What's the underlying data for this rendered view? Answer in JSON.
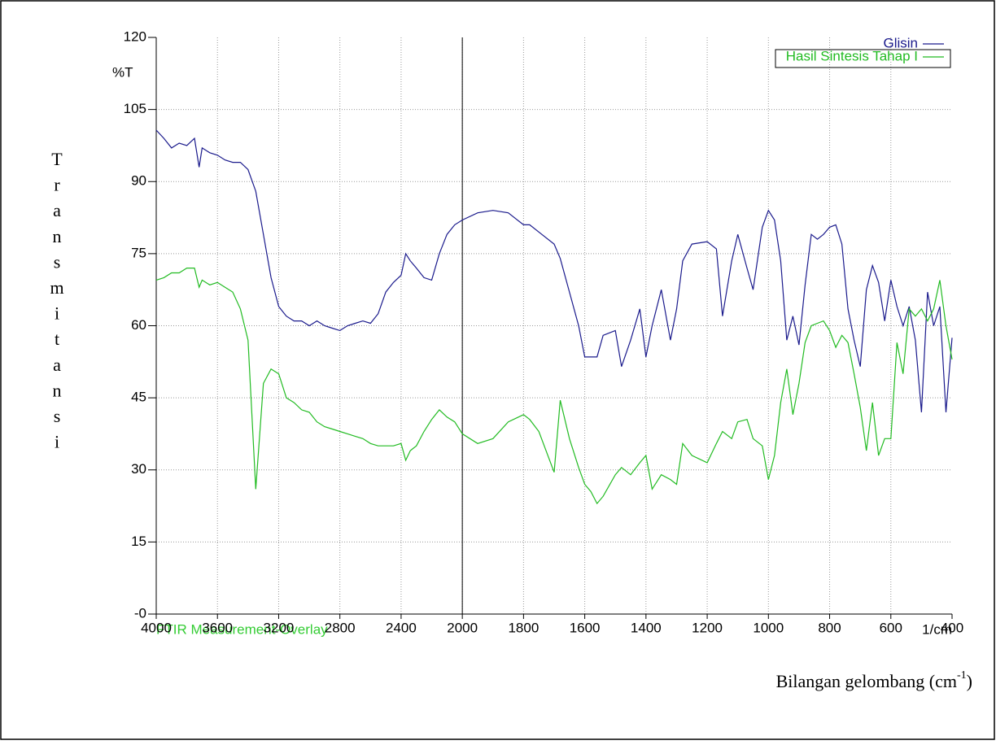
{
  "chart_data": {
    "type": "line",
    "y_title": "Transmitansi",
    "y_unit": "%T",
    "x_unit": "1/cm",
    "x_title": "Bilangan gelombang (cm",
    "x_title_sup": "-1",
    "x_title_end": ")",
    "caption": "FTIR Measurement-Overlay",
    "caption_color": "#33cc33",
    "xlim": [
      4000,
      400
    ],
    "xticks": [
      4000,
      3600,
      3200,
      2800,
      2400,
      2000,
      1800,
      1600,
      1400,
      1200,
      1000,
      800,
      600,
      400
    ],
    "xbreak": 2000,
    "ylim": [
      0,
      120
    ],
    "yticks": [
      {
        "value": 0,
        "label": "-0"
      },
      15,
      30,
      45,
      60,
      75,
      90,
      105,
      120
    ],
    "grid": true,
    "legend": "top-right",
    "x": [
      4000,
      3950,
      3900,
      3850,
      3800,
      3750,
      3720,
      3700,
      3650,
      3600,
      3550,
      3500,
      3450,
      3400,
      3350,
      3300,
      3250,
      3200,
      3150,
      3100,
      3050,
      3000,
      2950,
      2900,
      2850,
      2800,
      2750,
      2700,
      2650,
      2600,
      2550,
      2500,
      2450,
      2400,
      2370,
      2340,
      2300,
      2250,
      2200,
      2150,
      2100,
      2050,
      2000,
      1950,
      1900,
      1850,
      1800,
      1780,
      1750,
      1700,
      1680,
      1650,
      1620,
      1600,
      1580,
      1560,
      1540,
      1500,
      1480,
      1450,
      1420,
      1400,
      1380,
      1350,
      1320,
      1300,
      1280,
      1250,
      1200,
      1170,
      1150,
      1120,
      1100,
      1070,
      1050,
      1020,
      1000,
      980,
      960,
      940,
      920,
      900,
      880,
      860,
      840,
      820,
      800,
      780,
      760,
      740,
      720,
      700,
      680,
      660,
      640,
      620,
      600,
      580,
      560,
      540,
      520,
      500,
      480,
      460,
      440,
      420,
      400
    ],
    "series": [
      {
        "name": "Glisin",
        "color": "#1a1a8c",
        "values": [
          100.7,
          99,
          97,
          98,
          97.5,
          99,
          93,
          97,
          96,
          95.5,
          94.5,
          94,
          94,
          92.5,
          88,
          79,
          70,
          64,
          62,
          61,
          61,
          60,
          61,
          60,
          59.5,
          59,
          60,
          60.5,
          61,
          60.5,
          62.5,
          67,
          69,
          70.5,
          75,
          73.5,
          72,
          70,
          69.5,
          75,
          79,
          81,
          82,
          83.5,
          84,
          83.5,
          81,
          81,
          79.5,
          77,
          74,
          67,
          60,
          53.5,
          53.5,
          53.5,
          58,
          59,
          51.5,
          57,
          63.5,
          53.5,
          60,
          67.5,
          57,
          63.5,
          73.5,
          77,
          77.5,
          76,
          62,
          73.5,
          79,
          72,
          67.5,
          80.5,
          84,
          82,
          73.5,
          57,
          62,
          56,
          68.5,
          79,
          78,
          79,
          80.5,
          81,
          77,
          63.5,
          57,
          51.5,
          67.5,
          72.5,
          69,
          61,
          69.5,
          64,
          60,
          64,
          57,
          42,
          67,
          60,
          64,
          42,
          57.5
        ]
      },
      {
        "name": "Hasil Sintesis Tahap I",
        "color": "#22bb22",
        "values": [
          69.5,
          70,
          71,
          71,
          72,
          72,
          68,
          69.5,
          68.5,
          69,
          68,
          67,
          63.5,
          57,
          26,
          48,
          51,
          50,
          45,
          44,
          42.5,
          42,
          40,
          39,
          38.5,
          38,
          37.5,
          37,
          36.5,
          35.5,
          35,
          35,
          35,
          35.5,
          32,
          34,
          35,
          38,
          40.5,
          42.5,
          41,
          40,
          37.5,
          35.5,
          36.5,
          40,
          41.5,
          40.5,
          38,
          29.5,
          44.5,
          36.5,
          30.5,
          27,
          25.5,
          23,
          24.5,
          29,
          30.5,
          29,
          31.5,
          33,
          26,
          29,
          28,
          27,
          35.5,
          33,
          31.5,
          35.5,
          38,
          36.5,
          40,
          40.5,
          36.5,
          35,
          28,
          33,
          44,
          51,
          41.5,
          48,
          56.5,
          60,
          60.5,
          61,
          59,
          55.5,
          58,
          56.5,
          50,
          43,
          34,
          44,
          33,
          36.5,
          36.5,
          56.5,
          50,
          63.5,
          62,
          63.5,
          61,
          63.5,
          69.5,
          60,
          53
        ]
      }
    ]
  }
}
